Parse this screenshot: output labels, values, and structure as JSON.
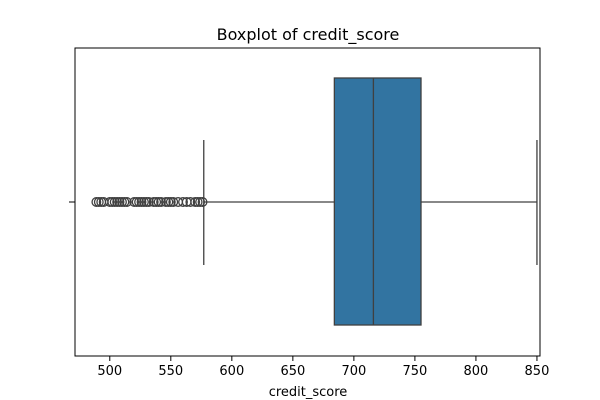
{
  "chart_data": {
    "type": "boxplot",
    "title": "Boxplot of credit_score",
    "xlabel": "credit_score",
    "ylabel": "",
    "orientation": "horizontal",
    "xlim": [
      471.5,
      852.5
    ],
    "xticks": [
      500,
      550,
      600,
      650,
      700,
      750,
      800,
      850
    ],
    "box": {
      "whisker_low": 577,
      "q1": 684,
      "median": 716,
      "q3": 755,
      "whisker_high": 850
    },
    "outliers": [
      489,
      491,
      493,
      495,
      500,
      502,
      504,
      506,
      508,
      510,
      512,
      514,
      520,
      522,
      524,
      526,
      528,
      530,
      532,
      536,
      538,
      540,
      542,
      546,
      548,
      550,
      552,
      556,
      560,
      563,
      566,
      570,
      572,
      574,
      576
    ],
    "colors": {
      "box_fill": "#3274a1",
      "line": "#404040",
      "axes": "#000000"
    }
  }
}
